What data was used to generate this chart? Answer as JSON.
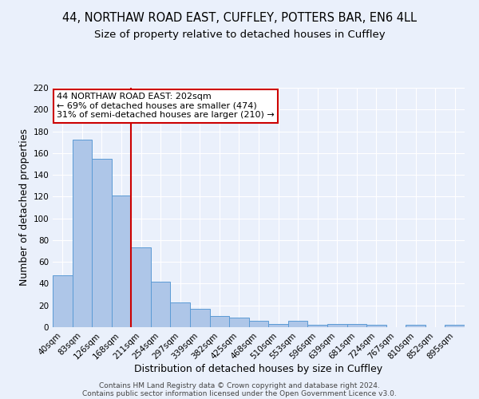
{
  "title": "44, NORTHAW ROAD EAST, CUFFLEY, POTTERS BAR, EN6 4LL",
  "subtitle": "Size of property relative to detached houses in Cuffley",
  "xlabel": "Distribution of detached houses by size in Cuffley",
  "ylabel": "Number of detached properties",
  "categories": [
    "40sqm",
    "83sqm",
    "126sqm",
    "168sqm",
    "211sqm",
    "254sqm",
    "297sqm",
    "339sqm",
    "382sqm",
    "425sqm",
    "468sqm",
    "510sqm",
    "553sqm",
    "596sqm",
    "639sqm",
    "681sqm",
    "724sqm",
    "767sqm",
    "810sqm",
    "852sqm",
    "895sqm"
  ],
  "values": [
    48,
    172,
    155,
    121,
    73,
    42,
    23,
    17,
    10,
    9,
    6,
    3,
    6,
    2,
    3,
    3,
    2,
    0,
    2,
    0,
    2
  ],
  "bar_color": "#aec6e8",
  "bar_edge_color": "#5b9bd5",
  "background_color": "#eaf0fb",
  "grid_color": "#ffffff",
  "vline_color": "#cc0000",
  "annotation_text": "44 NORTHAW ROAD EAST: 202sqm\n← 69% of detached houses are smaller (474)\n31% of semi-detached houses are larger (210) →",
  "annotation_box_color": "#ffffff",
  "annotation_box_edge_color": "#cc0000",
  "ylim": [
    0,
    220
  ],
  "yticks": [
    0,
    20,
    40,
    60,
    80,
    100,
    120,
    140,
    160,
    180,
    200,
    220
  ],
  "footer1": "Contains HM Land Registry data © Crown copyright and database right 2024.",
  "footer2": "Contains public sector information licensed under the Open Government Licence v3.0.",
  "title_fontsize": 10.5,
  "subtitle_fontsize": 9.5,
  "axis_label_fontsize": 9,
  "tick_fontsize": 7.5,
  "annotation_fontsize": 8,
  "footer_fontsize": 6.5
}
